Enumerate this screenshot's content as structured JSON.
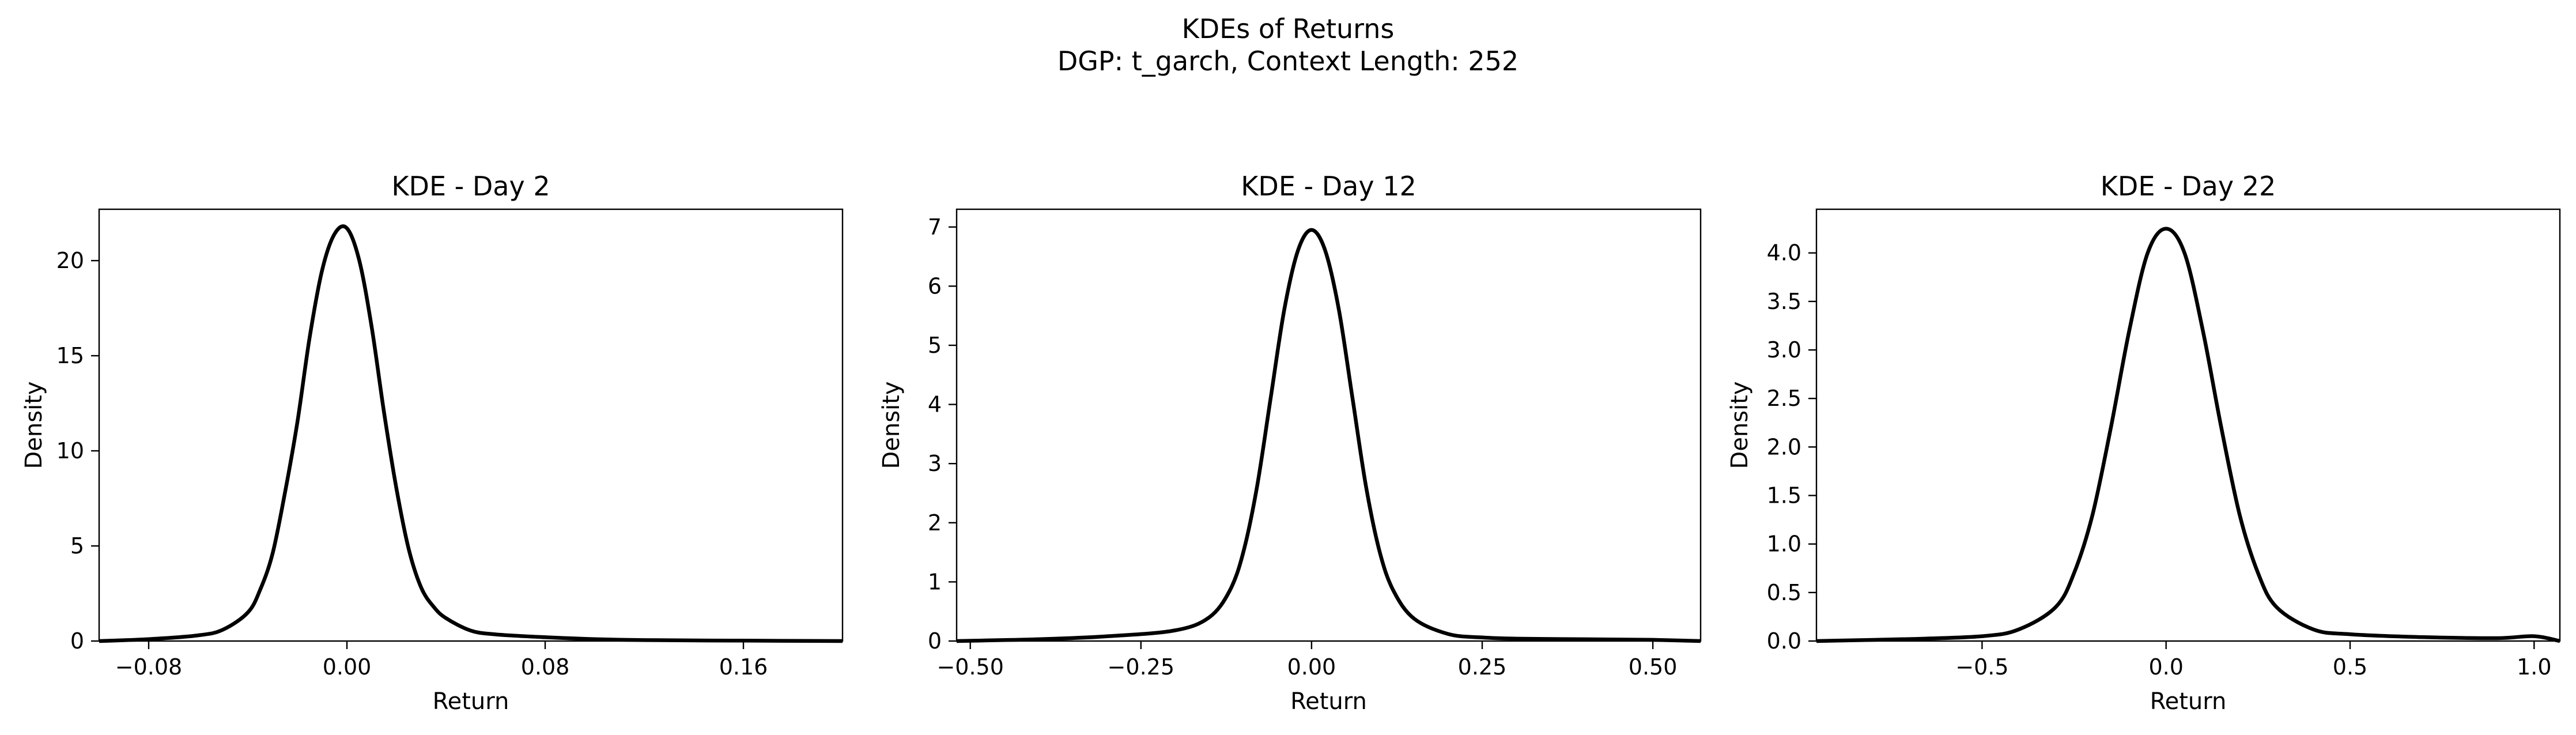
{
  "figure": {
    "title": "KDEs of Returns",
    "subtitle": "DGP: t_garch, Context Length: 252"
  },
  "chart_data": [
    {
      "type": "line",
      "title": "KDE - Day 2",
      "xlabel": "Return",
      "ylabel": "Density",
      "xlim": [
        -0.1,
        0.2
      ],
      "ylim": [
        0,
        22.7
      ],
      "xticks": [
        -0.08,
        0.0,
        0.08,
        0.16
      ],
      "xtick_labels": [
        "−0.08",
        "0.00",
        "0.08",
        "0.16"
      ],
      "yticks": [
        0,
        5,
        10,
        15,
        20
      ],
      "ytick_labels": [
        "0",
        "5",
        "10",
        "15",
        "20"
      ],
      "grid": false,
      "series": [
        {
          "color": "#000000",
          "x": [
            -0.1,
            -0.08,
            -0.06,
            -0.05,
            -0.04,
            -0.035,
            -0.03,
            -0.025,
            -0.02,
            -0.015,
            -0.01,
            -0.005,
            0.0,
            0.005,
            0.01,
            0.015,
            0.02,
            0.025,
            0.03,
            0.035,
            0.04,
            0.05,
            0.06,
            0.08,
            0.1,
            0.12,
            0.16,
            0.2
          ],
          "y": [
            0.0,
            0.1,
            0.3,
            0.6,
            1.5,
            2.7,
            4.6,
            7.8,
            11.5,
            16.0,
            19.5,
            21.4,
            21.7,
            20.0,
            16.5,
            12.0,
            8.0,
            4.8,
            2.8,
            1.8,
            1.2,
            0.55,
            0.35,
            0.2,
            0.1,
            0.05,
            0.02,
            0.0
          ]
        }
      ]
    },
    {
      "type": "line",
      "title": "KDE - Day 12",
      "xlabel": "Return",
      "ylabel": "Density",
      "xlim": [
        -0.52,
        0.57
      ],
      "ylim": [
        0,
        7.3
      ],
      "xticks": [
        -0.5,
        -0.25,
        0.0,
        0.25,
        0.5
      ],
      "xtick_labels": [
        "−0.50",
        "−0.25",
        "0.00",
        "0.25",
        "0.50"
      ],
      "yticks": [
        0,
        1,
        2,
        3,
        4,
        5,
        6,
        7
      ],
      "ytick_labels": [
        "0",
        "1",
        "2",
        "3",
        "4",
        "5",
        "6",
        "7"
      ],
      "grid": false,
      "series": [
        {
          "color": "#000000",
          "x": [
            -0.52,
            -0.4,
            -0.3,
            -0.2,
            -0.15,
            -0.12,
            -0.1,
            -0.08,
            -0.06,
            -0.04,
            -0.02,
            0.0,
            0.02,
            0.04,
            0.06,
            0.08,
            0.1,
            0.12,
            0.15,
            0.2,
            0.25,
            0.3,
            0.4,
            0.5,
            0.57
          ],
          "y": [
            0.0,
            0.03,
            0.08,
            0.18,
            0.4,
            0.85,
            1.5,
            2.6,
            4.1,
            5.6,
            6.6,
            6.95,
            6.6,
            5.6,
            4.1,
            2.6,
            1.5,
            0.85,
            0.38,
            0.12,
            0.06,
            0.04,
            0.03,
            0.02,
            0.0
          ]
        }
      ]
    },
    {
      "type": "line",
      "title": "KDE - Day 22",
      "xlabel": "Return",
      "ylabel": "Density",
      "xlim": [
        -0.95,
        1.07
      ],
      "ylim": [
        0,
        4.45
      ],
      "xticks": [
        -0.5,
        0.0,
        0.5,
        1.0
      ],
      "xtick_labels": [
        "−0.5",
        "0.0",
        "0.5",
        "1.0"
      ],
      "yticks": [
        0.0,
        0.5,
        1.0,
        1.5,
        2.0,
        2.5,
        3.0,
        3.5,
        4.0
      ],
      "ytick_labels": [
        "0.0",
        "0.5",
        "1.0",
        "1.5",
        "2.0",
        "2.5",
        "3.0",
        "3.5",
        "4.0"
      ],
      "grid": false,
      "series": [
        {
          "color": "#000000",
          "x": [
            -0.95,
            -0.7,
            -0.5,
            -0.4,
            -0.3,
            -0.25,
            -0.2,
            -0.15,
            -0.1,
            -0.05,
            0.0,
            0.05,
            0.1,
            0.15,
            0.2,
            0.25,
            0.3,
            0.4,
            0.5,
            0.7,
            0.9,
            1.0,
            1.07
          ],
          "y": [
            0.0,
            0.02,
            0.05,
            0.12,
            0.35,
            0.7,
            1.3,
            2.2,
            3.2,
            4.0,
            4.25,
            4.0,
            3.2,
            2.2,
            1.3,
            0.7,
            0.35,
            0.12,
            0.07,
            0.04,
            0.03,
            0.05,
            0.0
          ]
        }
      ]
    }
  ]
}
